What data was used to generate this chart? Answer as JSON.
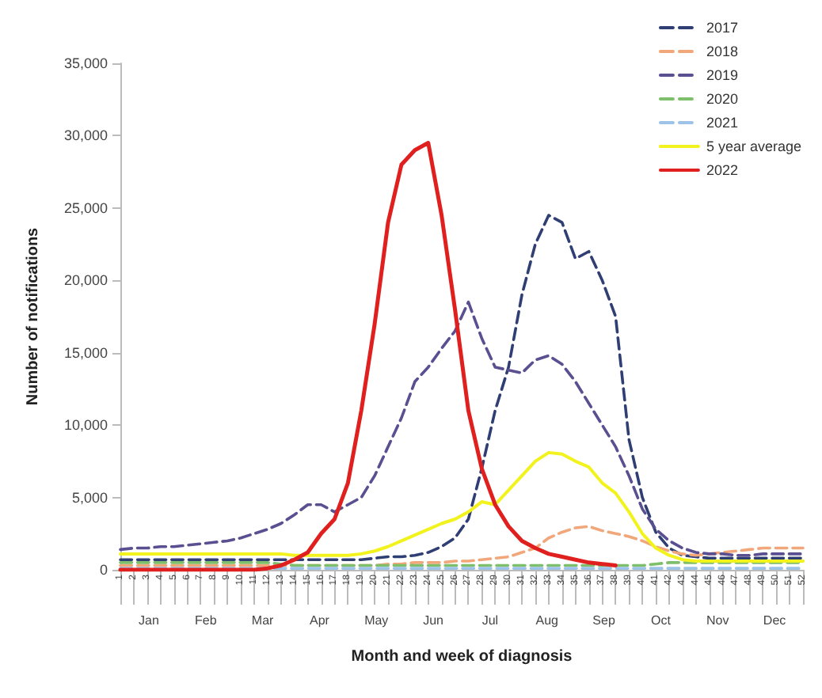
{
  "chart_data": {
    "type": "line",
    "xlabel": "Month and week of diagnosis",
    "ylabel": "Number of notifications",
    "categories": [
      "1",
      "2",
      "3",
      "4",
      "5",
      "6",
      "7",
      "8",
      "9",
      "10",
      "11",
      "12",
      "13",
      "14",
      "15",
      "16",
      "17",
      "18",
      "19",
      "20",
      "21",
      "22",
      "23",
      "24",
      "25",
      "26",
      "27",
      "28",
      "29",
      "30",
      "31",
      "32",
      "33",
      "34",
      "35",
      "36",
      "37",
      "38",
      "39",
      "40",
      "41",
      "42",
      "43",
      "44",
      "45",
      "46",
      "47",
      "48",
      "49",
      "50",
      "51",
      "52"
    ],
    "ylim": [
      0,
      35000
    ],
    "yticks": [
      {
        "value": 0,
        "label": "0"
      },
      {
        "value": 5000,
        "label": "5,000"
      },
      {
        "value": 10000,
        "label": "10,000"
      },
      {
        "value": 15000,
        "label": "15,000"
      },
      {
        "value": 20000,
        "label": "20,000"
      },
      {
        "value": 25000,
        "label": "25,000"
      },
      {
        "value": 30000,
        "label": "30,000"
      },
      {
        "value": 35000,
        "label": "35,000"
      }
    ],
    "legend": "top right",
    "marker": "none",
    "series": [
      {
        "name": "2017",
        "color": "#2f3f73",
        "line_style": "dashed",
        "values": [
          700,
          700,
          700,
          700,
          700,
          700,
          700,
          700,
          700,
          700,
          700,
          700,
          700,
          700,
          700,
          700,
          700,
          700,
          700,
          800,
          900,
          900,
          1000,
          1200,
          1600,
          2200,
          3500,
          7000,
          11000,
          14000,
          19000,
          22500,
          24500,
          24000,
          21500,
          22000,
          20000,
          17500,
          9000,
          5000,
          2600,
          1500,
          1000,
          900,
          800,
          800,
          800,
          800,
          800,
          800,
          800,
          800
        ]
      },
      {
        "name": "2018",
        "color": "#f2a77a",
        "line_style": "dashed",
        "values": [
          300,
          300,
          300,
          300,
          300,
          300,
          300,
          300,
          300,
          300,
          300,
          300,
          300,
          300,
          300,
          300,
          300,
          300,
          300,
          300,
          400,
          400,
          500,
          500,
          500,
          600,
          600,
          700,
          800,
          900,
          1200,
          1500,
          2200,
          2600,
          2900,
          3000,
          2700,
          2500,
          2300,
          2000,
          1600,
          1300,
          1100,
          1000,
          1100,
          1200,
          1300,
          1400,
          1500,
          1500,
          1500,
          1500
        ]
      },
      {
        "name": "2019",
        "color": "#5a4f90",
        "line_style": "dashed",
        "values": [
          1400,
          1500,
          1500,
          1600,
          1600,
          1700,
          1800,
          1900,
          2000,
          2200,
          2500,
          2800,
          3200,
          3800,
          4500,
          4500,
          4000,
          4500,
          5000,
          6500,
          8500,
          10500,
          13000,
          14000,
          15300,
          16500,
          18500,
          16000,
          14000,
          13800,
          13600,
          14500,
          14800,
          14200,
          13000,
          11500,
          10000,
          8500,
          6500,
          4200,
          2800,
          2000,
          1500,
          1200,
          1100,
          1100,
          1000,
          1000,
          1100,
          1100,
          1100,
          1100
        ]
      },
      {
        "name": "2020",
        "color": "#7dbf6a",
        "line_style": "dashed",
        "values": [
          500,
          500,
          500,
          500,
          500,
          500,
          500,
          500,
          500,
          500,
          500,
          500,
          400,
          300,
          300,
          300,
          300,
          300,
          300,
          300,
          300,
          300,
          300,
          300,
          300,
          300,
          300,
          300,
          300,
          300,
          300,
          300,
          300,
          300,
          300,
          300,
          300,
          300,
          300,
          300,
          400,
          500,
          500,
          500,
          500,
          500,
          500,
          500,
          500,
          500,
          500,
          500
        ]
      },
      {
        "name": "2021",
        "color": "#9dc3e6",
        "line_style": "dashed",
        "values": [
          100,
          100,
          100,
          100,
          100,
          100,
          100,
          100,
          100,
          100,
          100,
          100,
          100,
          100,
          100,
          100,
          100,
          100,
          100,
          100,
          100,
          100,
          100,
          100,
          100,
          100,
          100,
          100,
          100,
          100,
          100,
          100,
          100,
          100,
          100,
          100,
          100,
          100,
          100,
          100,
          100,
          100,
          100,
          100,
          100,
          100,
          100,
          100,
          100,
          100,
          100,
          100
        ]
      },
      {
        "name": "5 year average",
        "color": "#f2f21c",
        "line_style": "solid",
        "values": [
          1100,
          1100,
          1100,
          1100,
          1100,
          1100,
          1100,
          1100,
          1100,
          1100,
          1100,
          1100,
          1100,
          1000,
          1000,
          1000,
          1000,
          1000,
          1100,
          1300,
          1600,
          2000,
          2400,
          2800,
          3200,
          3500,
          4000,
          4700,
          4500,
          5500,
          6500,
          7500,
          8100,
          8000,
          7500,
          7100,
          6000,
          5300,
          4000,
          2500,
          1500,
          1000,
          700,
          600,
          600,
          600,
          600,
          600,
          600,
          600,
          600,
          600
        ]
      },
      {
        "name": "2022",
        "color": "#e0201f",
        "line_style": "solid",
        "values": [
          0,
          0,
          0,
          0,
          0,
          0,
          0,
          0,
          0,
          0,
          0,
          100,
          300,
          700,
          1200,
          2500,
          3500,
          6000,
          11000,
          17000,
          24000,
          28000,
          29000,
          29500,
          24500,
          18000,
          11000,
          7000,
          4500,
          3000,
          2000,
          1500,
          1100,
          900,
          700,
          500,
          400,
          300,
          null,
          null,
          null,
          null,
          null,
          null,
          null,
          null,
          null,
          null,
          null,
          null,
          null,
          null
        ]
      }
    ],
    "annotations": [
      "Jan",
      "Feb",
      "Mar",
      "Apr",
      "May",
      "Jun",
      "Jul",
      "Aug",
      "Sep",
      "Oct",
      "Nov",
      "Dec"
    ]
  }
}
